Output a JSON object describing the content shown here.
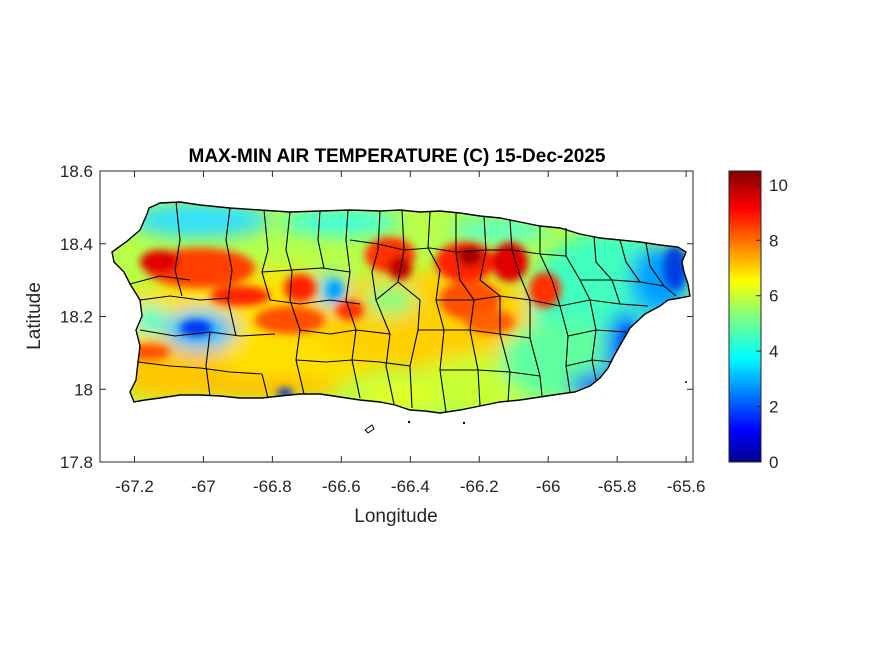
{
  "chart_data": {
    "type": "heatmap",
    "title": "MAX-MIN AIR TEMPERATURE (C) 15-Dec-2025",
    "xlabel": "Longitude",
    "ylabel": "Latitude",
    "xlim": [
      -67.3,
      -65.58
    ],
    "ylim": [
      17.8,
      18.6
    ],
    "xticks": [
      -67.2,
      -67,
      -66.8,
      -66.6,
      -66.4,
      -66.2,
      -66,
      -65.8,
      -65.6
    ],
    "xtick_labels": [
      "-67.2",
      "-67",
      "-66.8",
      "-66.6",
      "-66.4",
      "-66.2",
      "-66",
      "-65.8",
      "-65.6"
    ],
    "yticks": [
      17.8,
      18,
      18.2,
      18.4,
      18.6
    ],
    "ytick_labels": [
      "17.8",
      "18",
      "18.2",
      "18.4",
      "18.6"
    ],
    "colorbar": {
      "range": [
        0,
        10.5
      ],
      "ticks": [
        0,
        2,
        4,
        6,
        8,
        10
      ],
      "tick_labels": [
        "0",
        "2",
        "4",
        "6",
        "8",
        "10"
      ],
      "colormap": "jet"
    },
    "region": "Puerto Rico",
    "hotspots": [
      {
        "lon": -67.0,
        "lat": 18.33,
        "value": 9.5
      },
      {
        "lon": -66.9,
        "lat": 18.27,
        "value": 9.0
      },
      {
        "lon": -66.45,
        "lat": 18.36,
        "value": 9.5
      },
      {
        "lon": -66.25,
        "lat": 18.36,
        "value": 10.0
      },
      {
        "lon": -66.1,
        "lat": 18.33,
        "value": 9.0
      },
      {
        "lon": -66.0,
        "lat": 18.27,
        "value": 8.5
      },
      {
        "lon": -66.75,
        "lat": 18.27,
        "value": 8.5
      },
      {
        "lon": -66.25,
        "lat": 18.22,
        "value": 8.5
      },
      {
        "lon": -67.1,
        "lat": 18.38,
        "value": 9.0
      }
    ],
    "coolspots": [
      {
        "lon": -67.02,
        "lat": 18.16,
        "value": 2.0
      },
      {
        "lon": -66.62,
        "lat": 18.28,
        "value": 3.5
      },
      {
        "lon": -65.68,
        "lat": 18.3,
        "value": 2.5
      },
      {
        "lon": -65.75,
        "lat": 18.12,
        "value": 2.5
      },
      {
        "lon": -65.8,
        "lat": 18.02,
        "value": 3.0
      },
      {
        "lon": -66.85,
        "lat": 17.98,
        "value": 2.5
      }
    ]
  },
  "colors": {
    "background": "#ffffff",
    "axis": "#262626",
    "border": "#000000"
  }
}
